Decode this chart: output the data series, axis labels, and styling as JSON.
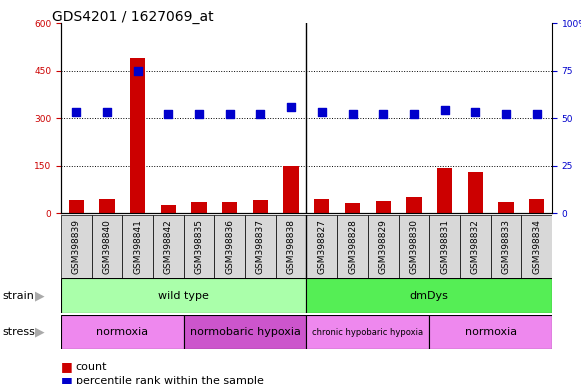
{
  "title": "GDS4201 / 1627069_at",
  "samples": [
    "GSM398839",
    "GSM398840",
    "GSM398841",
    "GSM398842",
    "GSM398835",
    "GSM398836",
    "GSM398837",
    "GSM398838",
    "GSM398827",
    "GSM398828",
    "GSM398829",
    "GSM398830",
    "GSM398831",
    "GSM398832",
    "GSM398833",
    "GSM398834"
  ],
  "counts": [
    40,
    45,
    490,
    25,
    35,
    35,
    40,
    148,
    45,
    32,
    38,
    50,
    143,
    130,
    35,
    45
  ],
  "percentile_ranks": [
    53,
    53,
    75,
    52,
    52,
    52,
    52,
    56,
    53,
    52,
    52,
    52,
    54,
    53,
    52,
    52
  ],
  "count_color": "#cc0000",
  "percentile_color": "#0000cc",
  "left_yaxis_ticks": [
    0,
    150,
    300,
    450,
    600
  ],
  "right_yaxis_ticks": [
    0,
    25,
    50,
    75,
    100
  ],
  "left_ylim": [
    0,
    600
  ],
  "right_ylim": [
    0,
    100
  ],
  "strain_labels": [
    {
      "label": "wild type",
      "start": 0,
      "end": 8,
      "color": "#aaffaa"
    },
    {
      "label": "dmDys",
      "start": 8,
      "end": 16,
      "color": "#55ee55"
    }
  ],
  "stress_labels": [
    {
      "label": "normoxia",
      "start": 0,
      "end": 4,
      "color": "#ee88ee"
    },
    {
      "label": "normobaric hypoxia",
      "start": 4,
      "end": 8,
      "color": "#cc55cc"
    },
    {
      "label": "chronic hypobaric hypoxia",
      "start": 8,
      "end": 12,
      "color": "#ee88ee"
    },
    {
      "label": "normoxia",
      "start": 12,
      "end": 16,
      "color": "#cc55cc"
    }
  ],
  "bar_width": 0.5,
  "dot_size": 30,
  "grid_color": "#000000",
  "tick_label_fontsize": 6.5,
  "title_fontsize": 10,
  "legend_fontsize": 8,
  "annotation_fontsize": 8,
  "row_label_fontsize": 8,
  "background_color": "#ffffff",
  "plot_bg_color": "#ffffff",
  "tick_bg_color": "#d8d8d8"
}
